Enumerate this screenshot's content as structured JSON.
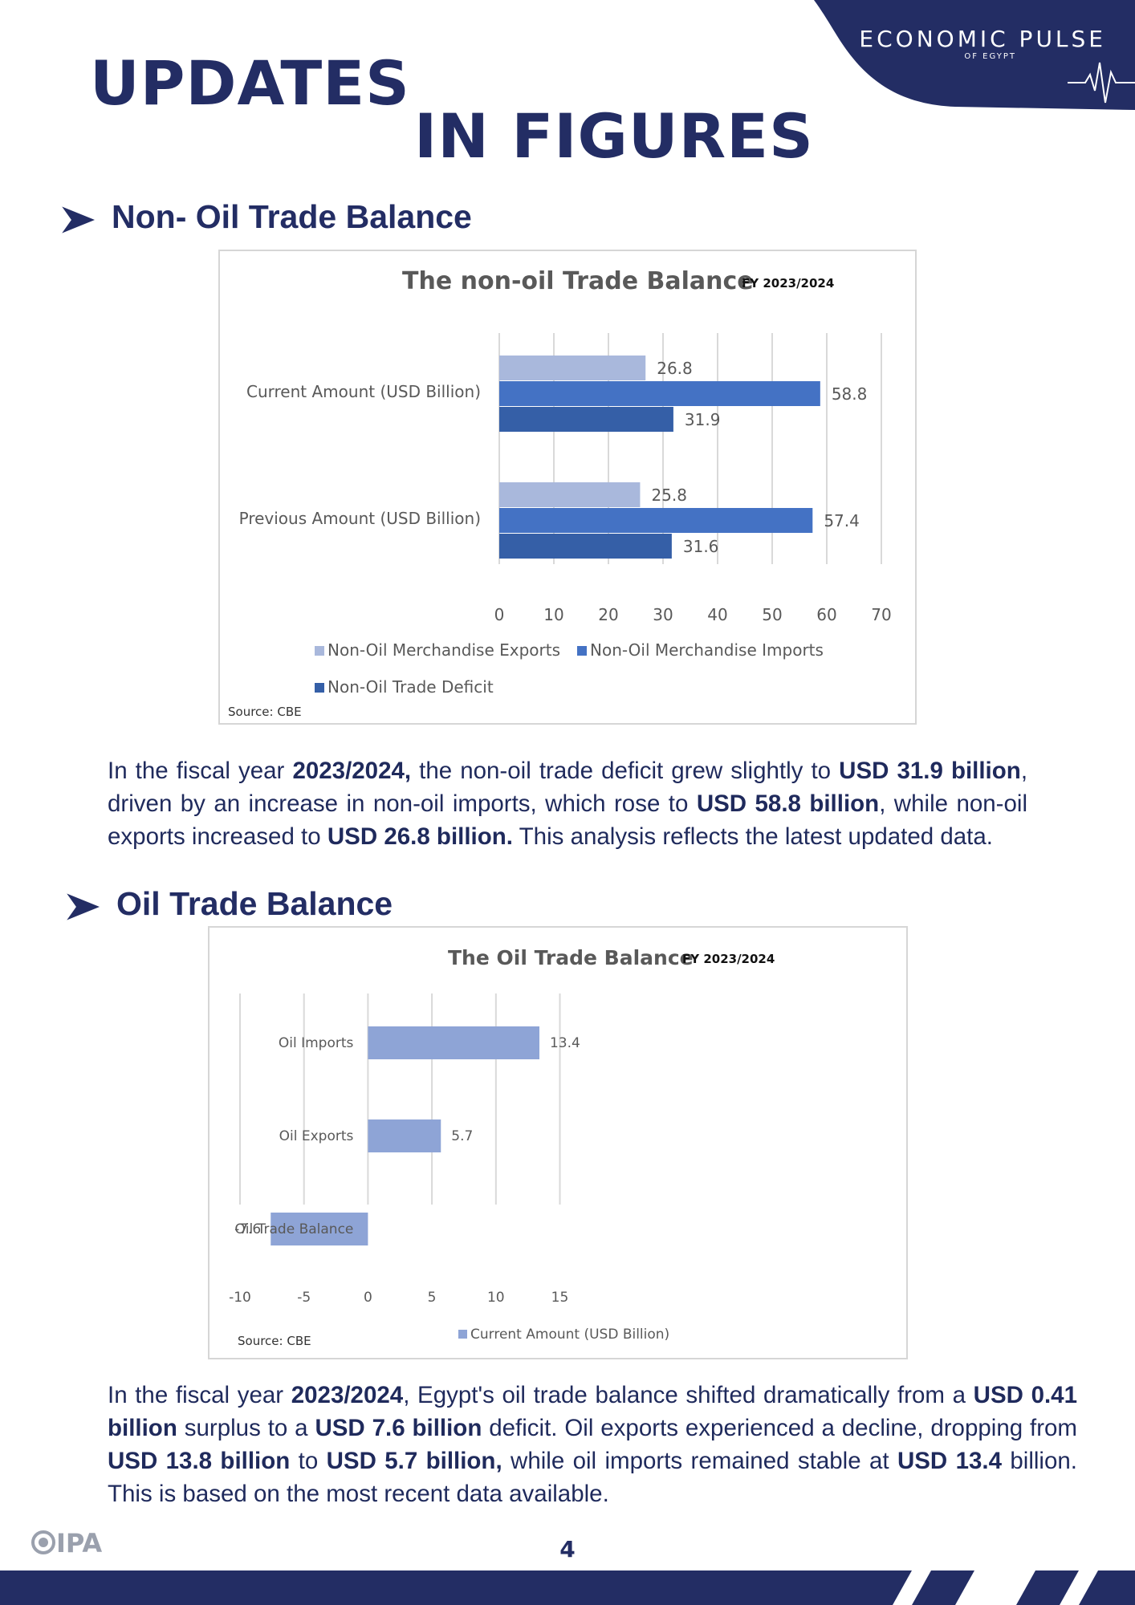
{
  "header": {
    "brand_name": "ECONOMIC PULSE",
    "brand_sub": "OF EGYPT",
    "title_line1": "UPDATES",
    "title_line2": "IN FIGURES"
  },
  "colors": {
    "navy": "#232d64",
    "export_bar": "#a9b8dc",
    "import_bar": "#4472c4",
    "deficit_bar": "#355fa7",
    "oil_bar": "#8ea4d6"
  },
  "section1": {
    "heading": "Non- Oil Trade Balance",
    "source": "Source: CBE",
    "paragraph": [
      {
        "t": "In the fiscal year ",
        "b": false
      },
      {
        "t": "2023/2024,",
        "b": true
      },
      {
        "t": " the non-oil trade deficit grew slightly to ",
        "b": false
      },
      {
        "t": "USD 31.9 billion",
        "b": true
      },
      {
        "t": ", driven by an increase in non-oil imports, which rose to ",
        "b": false
      },
      {
        "t": "USD 58.8 billion",
        "b": true
      },
      {
        "t": ", while non-oil exports increased to ",
        "b": false
      },
      {
        "t": "USD 26.8 billion.",
        "b": true
      },
      {
        "t": " This analysis reflects the latest updated data.",
        "b": false
      }
    ]
  },
  "section2": {
    "heading": "Oil Trade Balance",
    "source": "Source: CBE",
    "paragraph": [
      {
        "t": " In the fiscal year ",
        "b": false
      },
      {
        "t": "2023/2024",
        "b": true
      },
      {
        "t": ", Egypt's oil trade balance shifted dramatically from a ",
        "b": false
      },
      {
        "t": "USD 0.41 billion",
        "b": true
      },
      {
        "t": " surplus to a ",
        "b": false
      },
      {
        "t": "USD 7.6 billion",
        "b": true
      },
      {
        "t": " deficit. Oil exports experienced a decline, dropping from ",
        "b": false
      },
      {
        "t": "USD 13.8 billion",
        "b": true
      },
      {
        "t": " to ",
        "b": false
      },
      {
        "t": "USD 5.7 billion,",
        "b": true
      },
      {
        "t": " while oil imports remained stable at ",
        "b": false
      },
      {
        "t": "USD 13.4",
        "b": true
      },
      {
        "t": " billion. This is based on the most recent data available.",
        "b": false
      }
    ]
  },
  "footer": {
    "page_number": "4",
    "logo_text": "IPA"
  },
  "chart_data": [
    {
      "type": "bar",
      "orientation": "horizontal",
      "title": "The non-oil Trade Balance",
      "subtitle": "FY 2023/2024",
      "categories": [
        "Current Amount (USD Billion)",
        "Previous Amount (USD Billion)"
      ],
      "series": [
        {
          "name": "Non-Oil Merchandise Exports",
          "values": [
            26.8,
            25.8
          ],
          "color": "#a9b8dc"
        },
        {
          "name": "Non-Oil Merchandise Imports",
          "values": [
            58.8,
            57.4
          ],
          "color": "#4472c4"
        },
        {
          "name": "Non-Oil Trade Deficit",
          "values": [
            31.9,
            31.6
          ],
          "color": "#355fa7"
        }
      ],
      "xlim": [
        0,
        70
      ],
      "xticks": [
        0,
        10,
        20,
        30,
        40,
        50,
        60,
        70
      ],
      "grid": true,
      "legend": "bottom"
    },
    {
      "type": "bar",
      "orientation": "horizontal",
      "title": "The Oil Trade Balance",
      "subtitle": "FY 2023/2024",
      "categories": [
        "Oil Imports",
        "Oil Exports",
        "Oil Trade Balance"
      ],
      "series": [
        {
          "name": "Current Amount (USD Billion)",
          "values": [
            13.4,
            5.7,
            -7.6
          ],
          "color": "#8ea4d6"
        }
      ],
      "xlim": [
        -10,
        15
      ],
      "xticks": [
        -10,
        -5,
        0,
        5,
        10,
        15
      ],
      "grid": true,
      "legend": "bottom"
    }
  ]
}
